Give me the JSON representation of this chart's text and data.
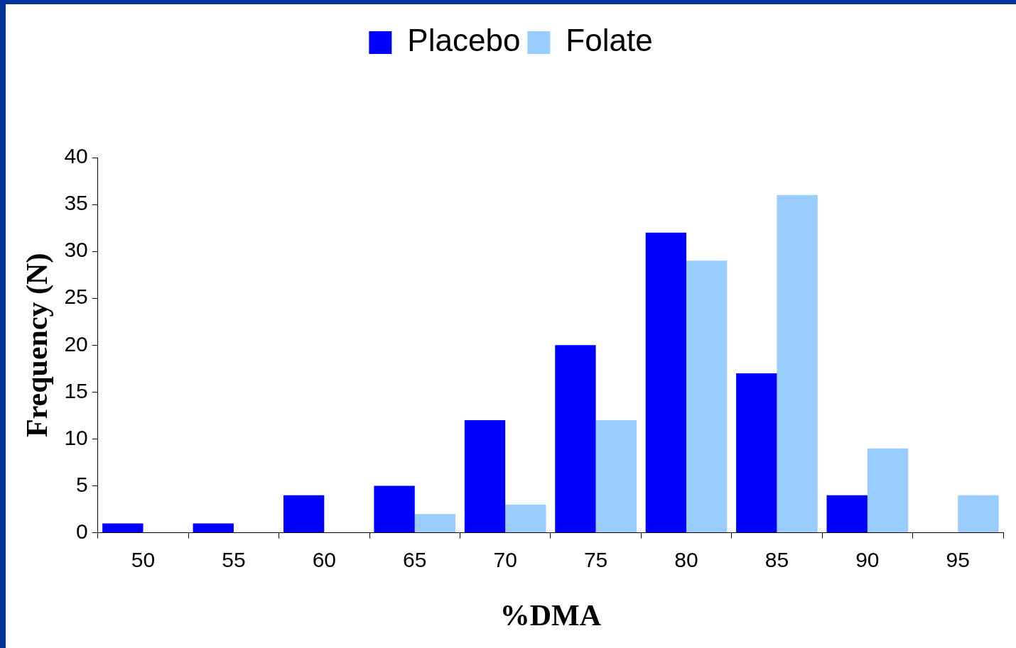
{
  "chart_data": {
    "type": "bar",
    "xlabel": "%DMA",
    "ylabel": "Frequency (N)",
    "categories": [
      "50",
      "55",
      "60",
      "65",
      "70",
      "75",
      "80",
      "85",
      "90",
      "95"
    ],
    "series": [
      {
        "name": "Placebo",
        "color": "#0000ff",
        "values": [
          1,
          1,
          4,
          5,
          12,
          20,
          32,
          17,
          4,
          0
        ]
      },
      {
        "name": "Folate",
        "color": "#99ccff",
        "values": [
          0,
          0,
          0,
          2,
          3,
          12,
          29,
          36,
          9,
          4
        ]
      }
    ],
    "ylim": [
      0,
      40
    ],
    "yticks": [
      0,
      5,
      10,
      15,
      20,
      25,
      30,
      35,
      40
    ],
    "grid": false,
    "legend": "top"
  }
}
